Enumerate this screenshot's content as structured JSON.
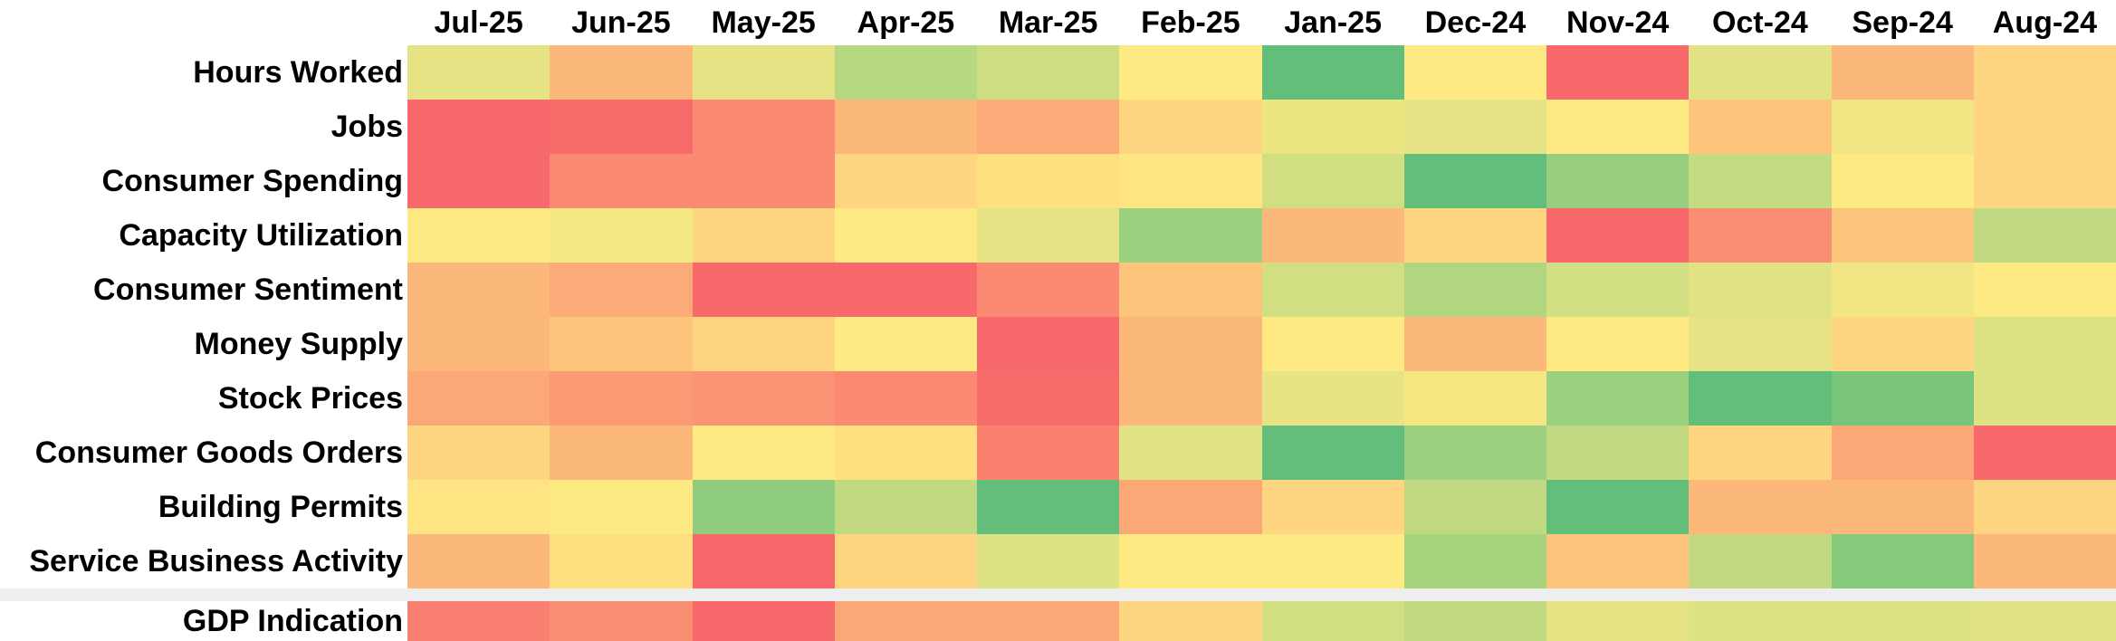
{
  "chart_data": {
    "type": "heatmap",
    "columns": [
      "Jul-25",
      "Jun-25",
      "May-25",
      "Apr-25",
      "Mar-25",
      "Feb-25",
      "Jan-25",
      "Dec-24",
      "Nov-24",
      "Oct-24",
      "Sep-24",
      "Aug-24"
    ],
    "rows": [
      "Hours Worked",
      "Jobs",
      "Consumer Spending",
      "Capacity Utilization",
      "Consumer Sentiment",
      "Money Supply",
      "Stock Prices",
      "Consumer Goods Orders",
      "Building Permits",
      "Service Business Activity"
    ],
    "colors": [
      [
        "#e5e384",
        "#fcb87a",
        "#e5e384",
        "#b6d880",
        "#ccdd82",
        "#fee983",
        "#63be7b",
        "#fee983",
        "#f8696b",
        "#e0e283",
        "#fcb87a",
        "#fed580"
      ],
      [
        "#f8696b",
        "#f86b6b",
        "#fa8a72",
        "#fcb87a",
        "#fcaa77",
        "#fed580",
        "#ebe582",
        "#e5e384",
        "#feea83",
        "#fdc47c",
        "#f1e683",
        "#fed580"
      ],
      [
        "#f8696b",
        "#fa8a72",
        "#fa8a72",
        "#fed580",
        "#fee080",
        "#fee482",
        "#d1df82",
        "#63be7b",
        "#98cf7e",
        "#c3db81",
        "#feea83",
        "#fed580"
      ],
      [
        "#fee983",
        "#f3e883",
        "#fed580",
        "#feea83",
        "#e5e384",
        "#9bd07e",
        "#fcb87a",
        "#fed580",
        "#f8696b",
        "#fa8e73",
        "#fdc47c",
        "#c1da81"
      ],
      [
        "#fcb87a",
        "#fbab77",
        "#f8696b",
        "#f8696b",
        "#fa8a72",
        "#fdc47c",
        "#d1df82",
        "#b1d67f",
        "#d1df82",
        "#e0e283",
        "#f1e683",
        "#feea83"
      ],
      [
        "#fcb87a",
        "#fdc47c",
        "#fed580",
        "#feea83",
        "#f8696b",
        "#fcb87a",
        "#fee983",
        "#fcb87a",
        "#fee983",
        "#e5e384",
        "#fed580",
        "#dde283"
      ],
      [
        "#fba776",
        "#fa9974",
        "#fa9474",
        "#fa8a72",
        "#f86b6b",
        "#fcb87a",
        "#e9e483",
        "#f5e883",
        "#9bd07e",
        "#63be7b",
        "#7ac57c",
        "#dde283"
      ],
      [
        "#fed580",
        "#fcb87a",
        "#feea83",
        "#fee080",
        "#fa8070",
        "#e0e283",
        "#63be7b",
        "#9bd07e",
        "#c1da81",
        "#fed580",
        "#fba776",
        "#f8696b"
      ],
      [
        "#fee482",
        "#feea83",
        "#90cc7d",
        "#c1da81",
        "#63be7b",
        "#fba776",
        "#fed580",
        "#c1da81",
        "#63be7b",
        "#fcb87a",
        "#fcb87a",
        "#fed580"
      ],
      [
        "#fcb87a",
        "#fee080",
        "#f8696b",
        "#fed580",
        "#dde283",
        "#feea83",
        "#feea83",
        "#a7d37f",
        "#fdc47c",
        "#c1da81",
        "#86c97c",
        "#fcb87a"
      ]
    ],
    "summary_row": {
      "label": "GDP Indication",
      "colors": [
        "#f98070",
        "#fa8e73",
        "#f8696b",
        "#fba776",
        "#fba776",
        "#fed580",
        "#d1df82",
        "#c1da81",
        "#e9e483",
        "#dde283",
        "#dde283",
        "#e0e283"
      ]
    },
    "legend": "none",
    "grid": false
  }
}
